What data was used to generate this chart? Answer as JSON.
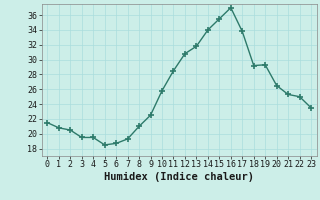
{
  "x": [
    0,
    1,
    2,
    3,
    4,
    5,
    6,
    7,
    8,
    9,
    10,
    11,
    12,
    13,
    14,
    15,
    16,
    17,
    18,
    19,
    20,
    21,
    22,
    23
  ],
  "y": [
    21.5,
    20.8,
    20.5,
    19.5,
    19.5,
    18.5,
    18.7,
    19.3,
    21.0,
    22.5,
    25.8,
    28.5,
    30.8,
    31.8,
    34.0,
    35.5,
    37.0,
    33.8,
    29.2,
    29.3,
    26.5,
    25.3,
    25.0,
    23.5
  ],
  "line_color": "#2d7a6a",
  "marker": "+",
  "markersize": 4,
  "markeredgewidth": 1.2,
  "linewidth": 1.0,
  "bg_color": "#cceee8",
  "grid_color": "#aadddd",
  "xlabel": "Humidex (Indice chaleur)",
  "xlabel_fontsize": 7.5,
  "yticks": [
    18,
    20,
    22,
    24,
    26,
    28,
    30,
    32,
    34,
    36
  ],
  "xticks": [
    0,
    1,
    2,
    3,
    4,
    5,
    6,
    7,
    8,
    9,
    10,
    11,
    12,
    13,
    14,
    15,
    16,
    17,
    18,
    19,
    20,
    21,
    22,
    23
  ],
  "ylim": [
    17.0,
    37.5
  ],
  "xlim": [
    -0.5,
    23.5
  ],
  "tick_fontsize": 6.0,
  "tick_color": "#1a1a1a"
}
